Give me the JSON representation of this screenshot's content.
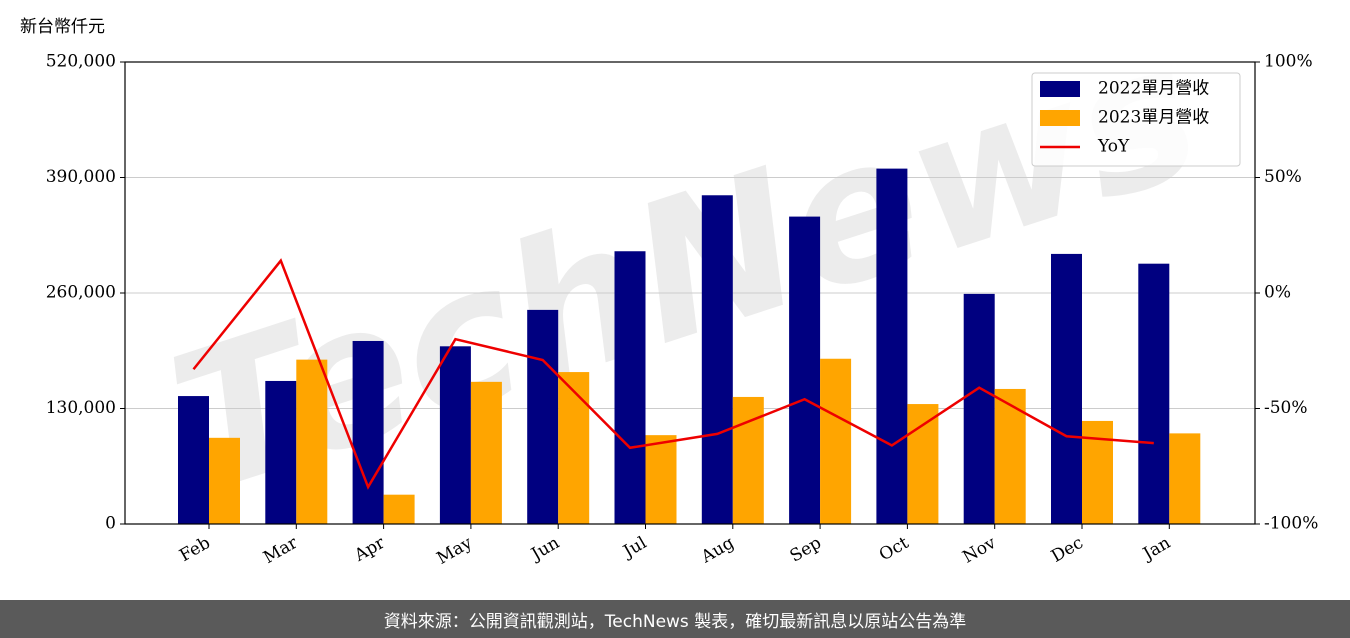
{
  "chart_data": {
    "type": "bar",
    "unit_label": "新台幣仟元",
    "watermark": "TechNews",
    "categories": [
      "Feb",
      "Mar",
      "Apr",
      "May",
      "Jun",
      "Jul",
      "Aug",
      "Sep",
      "Oct",
      "Nov",
      "Dec",
      "Jan"
    ],
    "series": [
      {
        "name": "2022單月營收",
        "color": "#000080",
        "type": "bar",
        "values": [
          144000,
          161000,
          206000,
          200000,
          241000,
          307000,
          370000,
          346000,
          400000,
          259000,
          304000,
          293000
        ]
      },
      {
        "name": "2023單月營收",
        "color": "#ffa500",
        "type": "bar",
        "values": [
          97000,
          185000,
          33000,
          160000,
          171000,
          100000,
          143000,
          186000,
          135000,
          152000,
          116000,
          102000
        ]
      },
      {
        "name": "YoY",
        "color": "#ee0000",
        "type": "line",
        "axis": "y2",
        "values": [
          -33,
          14,
          -84,
          -20,
          -29,
          -67,
          -61,
          -46,
          -66,
          -41,
          -62,
          -65
        ]
      }
    ],
    "ylim": [
      0,
      520000
    ],
    "yticks": [
      0,
      {
        "value": 130000,
        "label": "130,000"
      },
      {
        "value": 260000,
        "label": "260,000"
      },
      {
        "value": 390000,
        "label": "390,000"
      },
      {
        "value": 520000,
        "label": "520,000"
      }
    ],
    "y2lim": [
      -100,
      100
    ],
    "y2ticks": [
      {
        "value": -100,
        "label": "-100%"
      },
      {
        "value": -50,
        "label": "-50%"
      },
      {
        "value": 0,
        "label": "0%"
      },
      {
        "value": 50,
        "label": "50%"
      },
      {
        "value": 100,
        "label": "100%"
      }
    ],
    "grid": true,
    "legend": "upper right"
  },
  "footer": "資料來源：公開資訊觀測站，TechNews 製表，確切最新訊息以原站公告為準"
}
